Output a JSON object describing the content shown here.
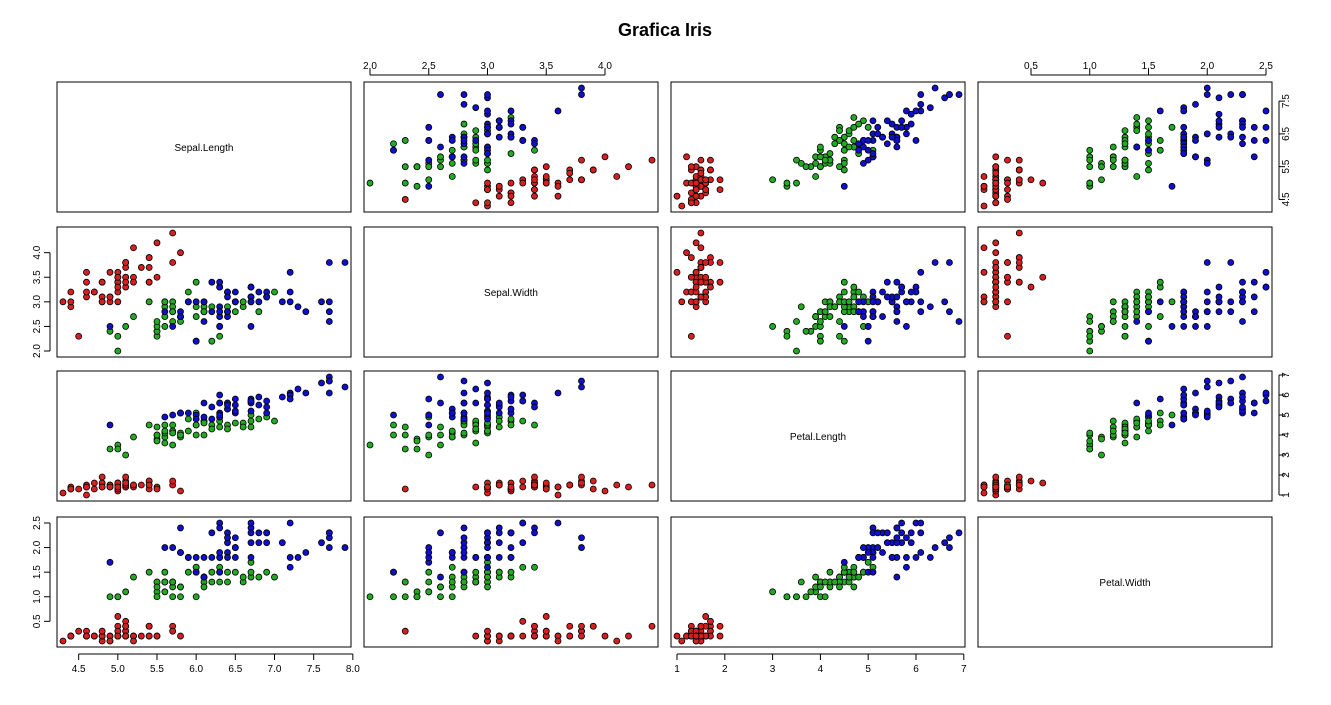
{
  "chart_data": {
    "type": "scatter",
    "title": "Grafica Iris",
    "variables": [
      "Sepal.Length",
      "Sepal.Width",
      "Petal.Length",
      "Petal.Width"
    ],
    "species_colors": [
      "#d62020",
      "#22aa22",
      "#1010cc"
    ],
    "axes": {
      "Sepal.Length": {
        "range": [
          4.3,
          7.9
        ],
        "ticks": [
          4.5,
          5.0,
          5.5,
          6.0,
          6.5,
          7.0,
          7.5,
          8.0
        ],
        "tick_labels": [
          "4.5",
          "5.0",
          "5.5",
          "6.0",
          "6.5",
          "7.0",
          "7.5",
          "8.0"
        ]
      },
      "Sepal.Width": {
        "range": [
          2.0,
          4.4
        ],
        "ticks": [
          2.0,
          2.5,
          3.0,
          3.5,
          4.0
        ],
        "tick_labels": [
          "2.0",
          "2.5",
          "3.0",
          "3.5",
          "4.0"
        ]
      },
      "Petal.Length": {
        "range": [
          1.0,
          6.9
        ],
        "ticks": [
          1,
          2,
          3,
          4,
          5,
          6,
          7
        ],
        "tick_labels": [
          "1",
          "2",
          "3",
          "4",
          "5",
          "6",
          "7"
        ]
      },
      "Petal.Width": {
        "range": [
          0.1,
          2.5
        ],
        "ticks": [
          0.5,
          1.0,
          1.5,
          2.0,
          2.5
        ],
        "tick_labels": [
          "0.5",
          "1.0",
          "1.5",
          "2.0",
          "2.5"
        ]
      }
    },
    "right_axis_labels": {
      "Sepal.Length": {
        "ticks": [
          4.5,
          5.5,
          6.5,
          7.5
        ],
        "tick_labels": [
          "4.5",
          "5.5",
          "6.5",
          "7.5"
        ]
      },
      "Petal.Length": {
        "ticks": [
          1,
          2,
          3,
          4,
          5,
          6,
          7
        ],
        "tick_labels": [
          "1",
          "2",
          "3",
          "4",
          "5",
          "6",
          "7"
        ]
      }
    },
    "observations": [
      [
        5.1,
        3.5,
        1.4,
        0.2,
        0
      ],
      [
        4.9,
        3.0,
        1.4,
        0.2,
        0
      ],
      [
        4.7,
        3.2,
        1.3,
        0.2,
        0
      ],
      [
        4.6,
        3.1,
        1.5,
        0.2,
        0
      ],
      [
        5.0,
        3.6,
        1.4,
        0.2,
        0
      ],
      [
        5.4,
        3.9,
        1.7,
        0.4,
        0
      ],
      [
        4.6,
        3.4,
        1.4,
        0.3,
        0
      ],
      [
        5.0,
        3.4,
        1.5,
        0.2,
        0
      ],
      [
        4.4,
        2.9,
        1.4,
        0.2,
        0
      ],
      [
        4.9,
        3.1,
        1.5,
        0.1,
        0
      ],
      [
        5.4,
        3.7,
        1.5,
        0.2,
        0
      ],
      [
        4.8,
        3.4,
        1.6,
        0.2,
        0
      ],
      [
        4.8,
        3.0,
        1.4,
        0.1,
        0
      ],
      [
        4.3,
        3.0,
        1.1,
        0.1,
        0
      ],
      [
        5.8,
        4.0,
        1.2,
        0.2,
        0
      ],
      [
        5.7,
        4.4,
        1.5,
        0.4,
        0
      ],
      [
        5.4,
        3.9,
        1.3,
        0.4,
        0
      ],
      [
        5.1,
        3.5,
        1.4,
        0.3,
        0
      ],
      [
        5.7,
        3.8,
        1.7,
        0.3,
        0
      ],
      [
        5.1,
        3.8,
        1.5,
        0.3,
        0
      ],
      [
        5.4,
        3.4,
        1.7,
        0.2,
        0
      ],
      [
        5.1,
        3.7,
        1.5,
        0.4,
        0
      ],
      [
        4.6,
        3.6,
        1.0,
        0.2,
        0
      ],
      [
        5.1,
        3.3,
        1.7,
        0.5,
        0
      ],
      [
        4.8,
        3.4,
        1.9,
        0.2,
        0
      ],
      [
        5.0,
        3.0,
        1.6,
        0.2,
        0
      ],
      [
        5.0,
        3.4,
        1.6,
        0.4,
        0
      ],
      [
        5.2,
        3.5,
        1.5,
        0.2,
        0
      ],
      [
        5.2,
        3.4,
        1.4,
        0.2,
        0
      ],
      [
        4.7,
        3.2,
        1.6,
        0.2,
        0
      ],
      [
        4.8,
        3.1,
        1.6,
        0.2,
        0
      ],
      [
        5.4,
        3.4,
        1.5,
        0.4,
        0
      ],
      [
        5.2,
        4.1,
        1.5,
        0.1,
        0
      ],
      [
        5.5,
        4.2,
        1.4,
        0.2,
        0
      ],
      [
        4.9,
        3.1,
        1.5,
        0.2,
        0
      ],
      [
        5.0,
        3.2,
        1.2,
        0.2,
        0
      ],
      [
        5.5,
        3.5,
        1.3,
        0.2,
        0
      ],
      [
        4.9,
        3.6,
        1.4,
        0.1,
        0
      ],
      [
        4.4,
        3.0,
        1.3,
        0.2,
        0
      ],
      [
        5.1,
        3.4,
        1.5,
        0.2,
        0
      ],
      [
        5.0,
        3.5,
        1.3,
        0.3,
        0
      ],
      [
        4.5,
        2.3,
        1.3,
        0.3,
        0
      ],
      [
        4.4,
        3.2,
        1.3,
        0.2,
        0
      ],
      [
        5.0,
        3.5,
        1.6,
        0.6,
        0
      ],
      [
        5.1,
        3.8,
        1.9,
        0.4,
        0
      ],
      [
        4.8,
        3.0,
        1.4,
        0.3,
        0
      ],
      [
        5.1,
        3.8,
        1.6,
        0.2,
        0
      ],
      [
        4.6,
        3.2,
        1.4,
        0.2,
        0
      ],
      [
        5.3,
        3.7,
        1.5,
        0.2,
        0
      ],
      [
        5.0,
        3.3,
        1.4,
        0.2,
        0
      ],
      [
        7.0,
        3.2,
        4.7,
        1.4,
        1
      ],
      [
        6.4,
        3.2,
        4.5,
        1.5,
        1
      ],
      [
        6.9,
        3.1,
        4.9,
        1.5,
        1
      ],
      [
        5.5,
        2.3,
        4.0,
        1.3,
        1
      ],
      [
        6.5,
        2.8,
        4.6,
        1.5,
        1
      ],
      [
        5.7,
        2.8,
        4.5,
        1.3,
        1
      ],
      [
        6.3,
        3.3,
        4.7,
        1.6,
        1
      ],
      [
        4.9,
        2.4,
        3.3,
        1.0,
        1
      ],
      [
        6.6,
        2.9,
        4.6,
        1.3,
        1
      ],
      [
        5.2,
        2.7,
        3.9,
        1.4,
        1
      ],
      [
        5.0,
        2.0,
        3.5,
        1.0,
        1
      ],
      [
        5.9,
        3.0,
        4.2,
        1.5,
        1
      ],
      [
        6.0,
        2.2,
        4.0,
        1.0,
        1
      ],
      [
        6.1,
        2.9,
        4.7,
        1.4,
        1
      ],
      [
        5.6,
        2.9,
        3.6,
        1.3,
        1
      ],
      [
        6.7,
        3.1,
        4.4,
        1.4,
        1
      ],
      [
        5.6,
        3.0,
        4.5,
        1.5,
        1
      ],
      [
        5.8,
        2.7,
        4.1,
        1.0,
        1
      ],
      [
        6.2,
        2.2,
        4.5,
        1.5,
        1
      ],
      [
        5.6,
        2.5,
        3.9,
        1.1,
        1
      ],
      [
        5.9,
        3.2,
        4.8,
        1.8,
        1
      ],
      [
        6.1,
        2.8,
        4.0,
        1.3,
        1
      ],
      [
        6.3,
        2.5,
        4.9,
        1.5,
        1
      ],
      [
        6.1,
        2.8,
        4.7,
        1.2,
        1
      ],
      [
        6.4,
        2.9,
        4.3,
        1.3,
        1
      ],
      [
        6.6,
        3.0,
        4.4,
        1.4,
        1
      ],
      [
        6.8,
        2.8,
        4.8,
        1.4,
        1
      ],
      [
        6.7,
        3.0,
        5.0,
        1.7,
        1
      ],
      [
        6.0,
        2.9,
        4.5,
        1.5,
        1
      ],
      [
        5.7,
        2.6,
        3.5,
        1.0,
        1
      ],
      [
        5.5,
        2.4,
        3.8,
        1.1,
        1
      ],
      [
        5.5,
        2.4,
        3.7,
        1.0,
        1
      ],
      [
        5.8,
        2.7,
        3.9,
        1.2,
        1
      ],
      [
        6.0,
        2.7,
        5.1,
        1.6,
        1
      ],
      [
        5.4,
        3.0,
        4.5,
        1.5,
        1
      ],
      [
        6.0,
        3.4,
        4.5,
        1.6,
        1
      ],
      [
        6.7,
        3.1,
        4.7,
        1.5,
        1
      ],
      [
        6.3,
        2.3,
        4.4,
        1.3,
        1
      ],
      [
        5.6,
        3.0,
        4.1,
        1.3,
        1
      ],
      [
        5.5,
        2.5,
        4.0,
        1.3,
        1
      ],
      [
        5.5,
        2.6,
        4.4,
        1.2,
        1
      ],
      [
        6.1,
        3.0,
        4.6,
        1.4,
        1
      ],
      [
        5.8,
        2.6,
        4.0,
        1.2,
        1
      ],
      [
        5.0,
        2.3,
        3.3,
        1.0,
        1
      ],
      [
        5.6,
        2.7,
        4.2,
        1.3,
        1
      ],
      [
        5.7,
        3.0,
        4.2,
        1.2,
        1
      ],
      [
        5.7,
        2.9,
        4.2,
        1.3,
        1
      ],
      [
        6.2,
        2.9,
        4.3,
        1.3,
        1
      ],
      [
        5.1,
        2.5,
        3.0,
        1.1,
        1
      ],
      [
        5.7,
        2.8,
        4.1,
        1.3,
        1
      ],
      [
        6.3,
        3.3,
        6.0,
        2.5,
        2
      ],
      [
        5.8,
        2.7,
        5.1,
        1.9,
        2
      ],
      [
        7.1,
        3.0,
        5.9,
        2.1,
        2
      ],
      [
        6.3,
        2.9,
        5.6,
        1.8,
        2
      ],
      [
        6.5,
        3.0,
        5.8,
        2.2,
        2
      ],
      [
        7.6,
        3.0,
        6.6,
        2.1,
        2
      ],
      [
        4.9,
        2.5,
        4.5,
        1.7,
        2
      ],
      [
        7.3,
        2.9,
        6.3,
        1.8,
        2
      ],
      [
        6.7,
        2.5,
        5.8,
        1.8,
        2
      ],
      [
        7.2,
        3.6,
        6.1,
        2.5,
        2
      ],
      [
        6.5,
        3.2,
        5.1,
        2.0,
        2
      ],
      [
        6.4,
        2.7,
        5.3,
        1.9,
        2
      ],
      [
        6.8,
        3.0,
        5.5,
        2.1,
        2
      ],
      [
        5.7,
        2.5,
        5.0,
        2.0,
        2
      ],
      [
        5.8,
        2.8,
        5.1,
        2.4,
        2
      ],
      [
        6.4,
        3.2,
        5.3,
        2.3,
        2
      ],
      [
        6.5,
        3.0,
        5.5,
        1.8,
        2
      ],
      [
        7.7,
        3.8,
        6.7,
        2.2,
        2
      ],
      [
        7.7,
        2.6,
        6.9,
        2.3,
        2
      ],
      [
        6.0,
        2.2,
        5.0,
        1.5,
        2
      ],
      [
        6.9,
        3.2,
        5.7,
        2.3,
        2
      ],
      [
        5.6,
        2.8,
        4.9,
        2.0,
        2
      ],
      [
        7.7,
        2.8,
        6.7,
        2.0,
        2
      ],
      [
        6.3,
        2.7,
        4.9,
        1.8,
        2
      ],
      [
        6.7,
        3.3,
        5.7,
        2.1,
        2
      ],
      [
        7.2,
        3.2,
        6.0,
        1.8,
        2
      ],
      [
        6.2,
        2.8,
        4.8,
        1.8,
        2
      ],
      [
        6.1,
        3.0,
        4.9,
        1.8,
        2
      ],
      [
        6.4,
        2.8,
        5.6,
        2.1,
        2
      ],
      [
        7.2,
        3.0,
        5.8,
        1.6,
        2
      ],
      [
        7.4,
        2.8,
        6.1,
        1.9,
        2
      ],
      [
        7.9,
        3.8,
        6.4,
        2.0,
        2
      ],
      [
        6.4,
        2.8,
        5.6,
        2.2,
        2
      ],
      [
        6.3,
        2.8,
        5.1,
        1.5,
        2
      ],
      [
        6.1,
        2.6,
        5.6,
        1.4,
        2
      ],
      [
        7.7,
        3.0,
        6.1,
        2.3,
        2
      ],
      [
        6.3,
        3.4,
        5.6,
        2.4,
        2
      ],
      [
        6.4,
        3.1,
        5.5,
        1.8,
        2
      ],
      [
        6.0,
        3.0,
        4.8,
        1.8,
        2
      ],
      [
        6.9,
        3.1,
        5.4,
        2.1,
        2
      ],
      [
        6.7,
        3.1,
        5.6,
        2.4,
        2
      ],
      [
        6.9,
        3.1,
        5.1,
        2.3,
        2
      ],
      [
        5.8,
        2.7,
        5.1,
        1.9,
        2
      ],
      [
        6.8,
        3.2,
        5.9,
        2.3,
        2
      ],
      [
        6.7,
        3.3,
        5.7,
        2.5,
        2
      ],
      [
        6.7,
        3.0,
        5.2,
        2.3,
        2
      ],
      [
        6.3,
        2.5,
        5.0,
        1.9,
        2
      ],
      [
        6.5,
        3.0,
        5.2,
        2.0,
        2
      ],
      [
        6.2,
        3.4,
        5.4,
        2.3,
        2
      ],
      [
        5.9,
        3.0,
        5.1,
        1.8,
        2
      ]
    ]
  }
}
